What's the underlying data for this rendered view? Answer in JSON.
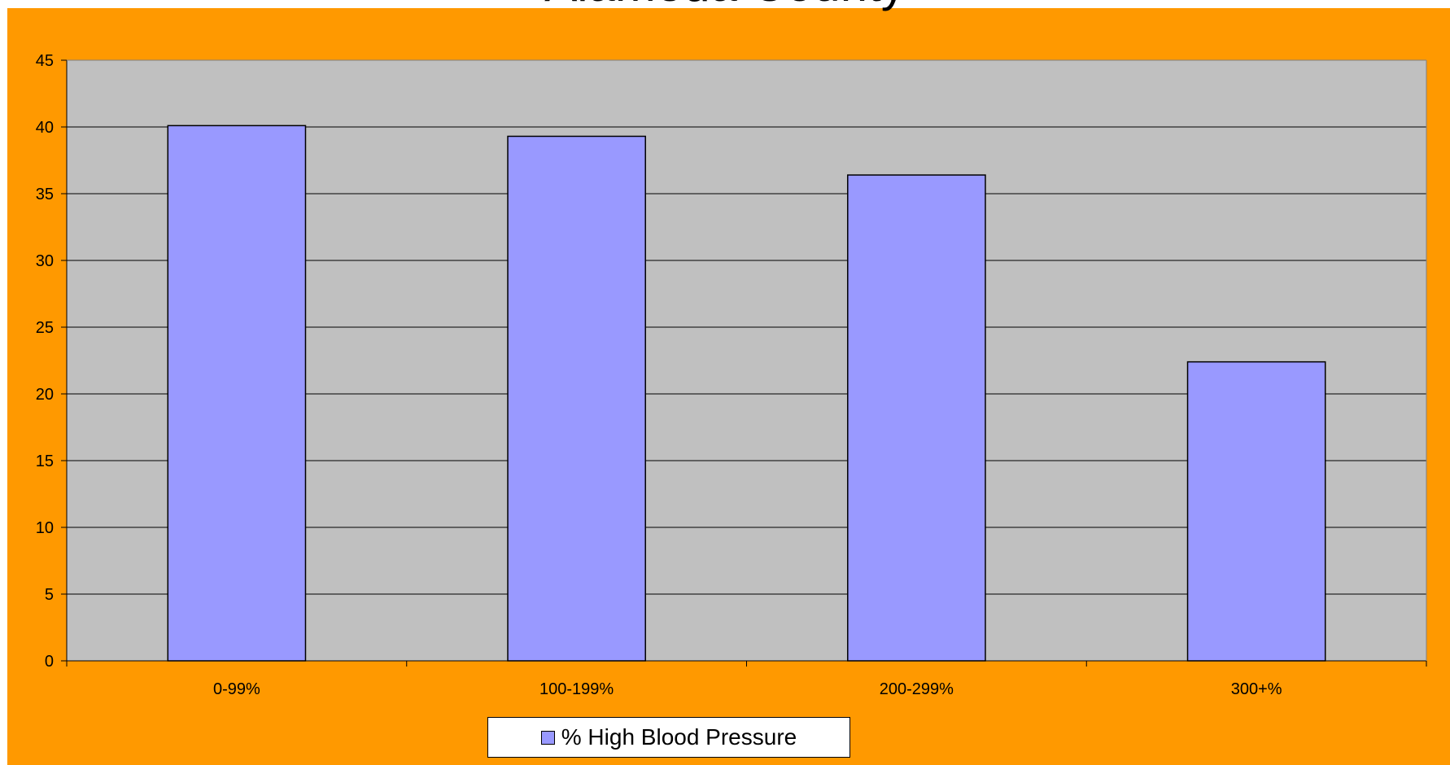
{
  "chart_data": {
    "type": "bar",
    "title": "Alameda County",
    "categories": [
      "0-99%",
      "100-199%",
      "200-299%",
      "300+%"
    ],
    "series": [
      {
        "name": "% High Blood Pressure",
        "values": [
          40.1,
          39.3,
          36.4,
          22.4
        ]
      }
    ],
    "ylim": [
      0,
      45
    ],
    "yticks": [
      0,
      5,
      10,
      15,
      20,
      25,
      30,
      35,
      40,
      45
    ],
    "grid": true,
    "legend_position": "bottom",
    "colors": {
      "background": "#ff9900",
      "plot_area": "#c0c0c0",
      "bar_fill": "#9999ff",
      "bar_stroke": "#000000",
      "gridline": "#000000"
    }
  }
}
